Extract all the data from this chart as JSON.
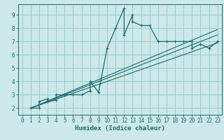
{
  "title": "",
  "xlabel": "Humidex (Indice chaleur)",
  "xlim": [
    -0.5,
    23.5
  ],
  "ylim": [
    1.5,
    9.8
  ],
  "xticks": [
    0,
    1,
    2,
    3,
    4,
    5,
    6,
    7,
    8,
    9,
    10,
    11,
    12,
    13,
    14,
    15,
    16,
    17,
    18,
    19,
    20,
    21,
    22,
    23
  ],
  "yticks": [
    2,
    3,
    4,
    5,
    6,
    7,
    8,
    9
  ],
  "bg_color": "#cce8e8",
  "line_color": "#1a6b6b",
  "grid_color": "#99cccc",
  "curve_x": [
    1,
    2,
    2,
    3,
    3,
    4,
    4,
    5,
    5,
    6,
    7,
    8,
    8,
    9,
    10,
    11,
    12,
    12,
    13,
    13,
    14,
    15,
    16,
    17,
    18,
    19,
    20,
    20,
    21,
    22,
    23
  ],
  "curve_y": [
    2,
    2,
    2.5,
    2.7,
    2.5,
    2.6,
    3.0,
    3.0,
    3.0,
    3.0,
    3.0,
    3.3,
    4.0,
    3.2,
    6.5,
    8.0,
    9.5,
    7.5,
    9.0,
    8.5,
    8.2,
    8.2,
    7.0,
    7.0,
    7.0,
    7.0,
    7.0,
    6.5,
    6.8,
    6.5,
    7.0
  ],
  "line1_x": [
    1,
    23
  ],
  "line1_y": [
    2.0,
    7.5
  ],
  "line2_x": [
    1,
    23
  ],
  "line2_y": [
    2.0,
    6.9
  ],
  "line3_x": [
    1,
    23
  ],
  "line3_y": [
    2.0,
    7.9
  ]
}
